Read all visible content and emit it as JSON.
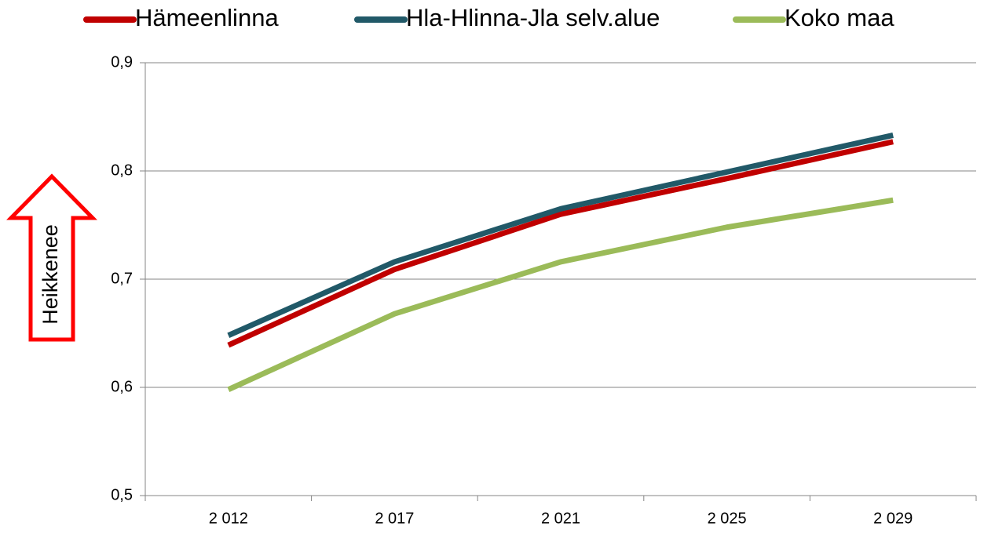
{
  "chart_data": {
    "type": "line",
    "annotation": "Heikkenee",
    "categories": [
      "2 012",
      "2 017",
      "2 021",
      "2 025",
      "2 029"
    ],
    "series": [
      {
        "name": "Hämeenlinna",
        "color": "#c00000",
        "values": [
          0.639,
          0.709,
          0.76,
          0.793,
          0.827
        ]
      },
      {
        "name": "Hla-Hlinna-Jla selv.alue",
        "color": "#215968",
        "values": [
          0.648,
          0.716,
          0.765,
          0.799,
          0.833
        ]
      },
      {
        "name": "Koko maa",
        "color": "#9bbb59",
        "values": [
          0.598,
          0.668,
          0.716,
          0.748,
          0.773
        ]
      }
    ],
    "ylim": [
      0.5,
      0.9
    ],
    "yticks": [
      {
        "value": 0.5,
        "label": "0,5"
      },
      {
        "value": 0.6,
        "label": "0,6"
      },
      {
        "value": 0.7,
        "label": "0,7"
      },
      {
        "value": 0.8,
        "label": "0,8"
      },
      {
        "value": 0.9,
        "label": "0,9"
      }
    ],
    "grid": true,
    "legend": "top"
  }
}
